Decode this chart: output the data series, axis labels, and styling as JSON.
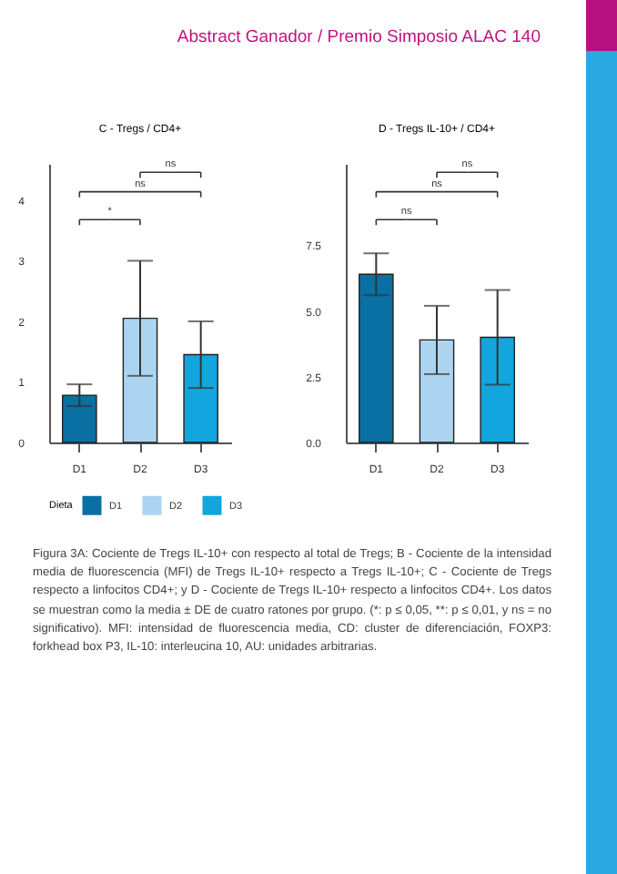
{
  "chart_data": [
    {
      "type": "bar",
      "title": "C - Tregs / CD4+",
      "categories": [
        "D1",
        "D2",
        "D3"
      ],
      "series": [
        {
          "name": "D1",
          "color": "#0a6fa3",
          "values": [
            0.78,
            null,
            null
          ],
          "errors": [
            0.18,
            null,
            null
          ]
        },
        {
          "name": "D2",
          "color": "#acd4f0",
          "values": [
            null,
            2.05,
            null
          ],
          "errors": [
            null,
            0.95,
            null
          ]
        },
        {
          "name": "D3",
          "color": "#13a6de",
          "values": [
            null,
            null,
            1.45
          ],
          "errors": [
            null,
            null,
            0.55
          ]
        }
      ],
      "ylim": [
        0,
        4.6
      ],
      "yticks": [
        0,
        1,
        2,
        3,
        4
      ],
      "legend_title": "Dieta",
      "legend": "bottom",
      "annotations": [
        "ns",
        "ns",
        "*"
      ]
    },
    {
      "type": "bar",
      "title": "D - Tregs IL-10+ / CD4+",
      "categories": [
        "D1",
        "D2",
        "D3"
      ],
      "series": [
        {
          "color": "#0a6fa3",
          "values": [
            6.4,
            null,
            null
          ],
          "errors": [
            0.8,
            null,
            null
          ]
        },
        {
          "color": "#acd4f0",
          "values": [
            null,
            3.9,
            null
          ],
          "errors": [
            null,
            1.3,
            null
          ]
        },
        {
          "color": "#13a6de",
          "values": [
            null,
            null,
            4.0
          ],
          "errors": [
            null,
            null,
            1.8
          ]
        }
      ],
      "ylim": [
        0,
        10.6
      ],
      "yticks": [
        {
          "value": 0,
          "label": "0.0"
        },
        {
          "value": 2.5,
          "label": "2.5"
        },
        {
          "value": 5,
          "label": "5.0"
        },
        {
          "value": 7.5,
          "label": "7.5"
        }
      ],
      "annotations": [
        "ns",
        "ns",
        "ns"
      ]
    },
    {
      "type": "other",
      "title": "Abstract Ganador / Premio Simposio ALAC 140",
      "annotations": [
        "Figura 3A: Cociente de Tregs IL-10+ con respecto al total de Tregs; B - Cociente de la intensidad media de fluorescencia (MFI) de Tregs IL-10+ respecto a Tregs IL-10+; C - Cociente de Tregs respecto a linfocitos CD4+; y D - Cociente de Tregs IL-10+ respecto a linfocitos CD4+. Los datos se muestran como la media ± DE de cuatro ratones por grupo. (*: p ≤ 0,05, **: p ≤ 0,01, y ns = no significativo). MFI: intensidad de fluorescencia media, CD: cluster de diferenciación, FOXP3: forkhead box P3, IL-10: interleucina 10, AU: unidades arbitrarias."
      ]
    }
  ]
}
